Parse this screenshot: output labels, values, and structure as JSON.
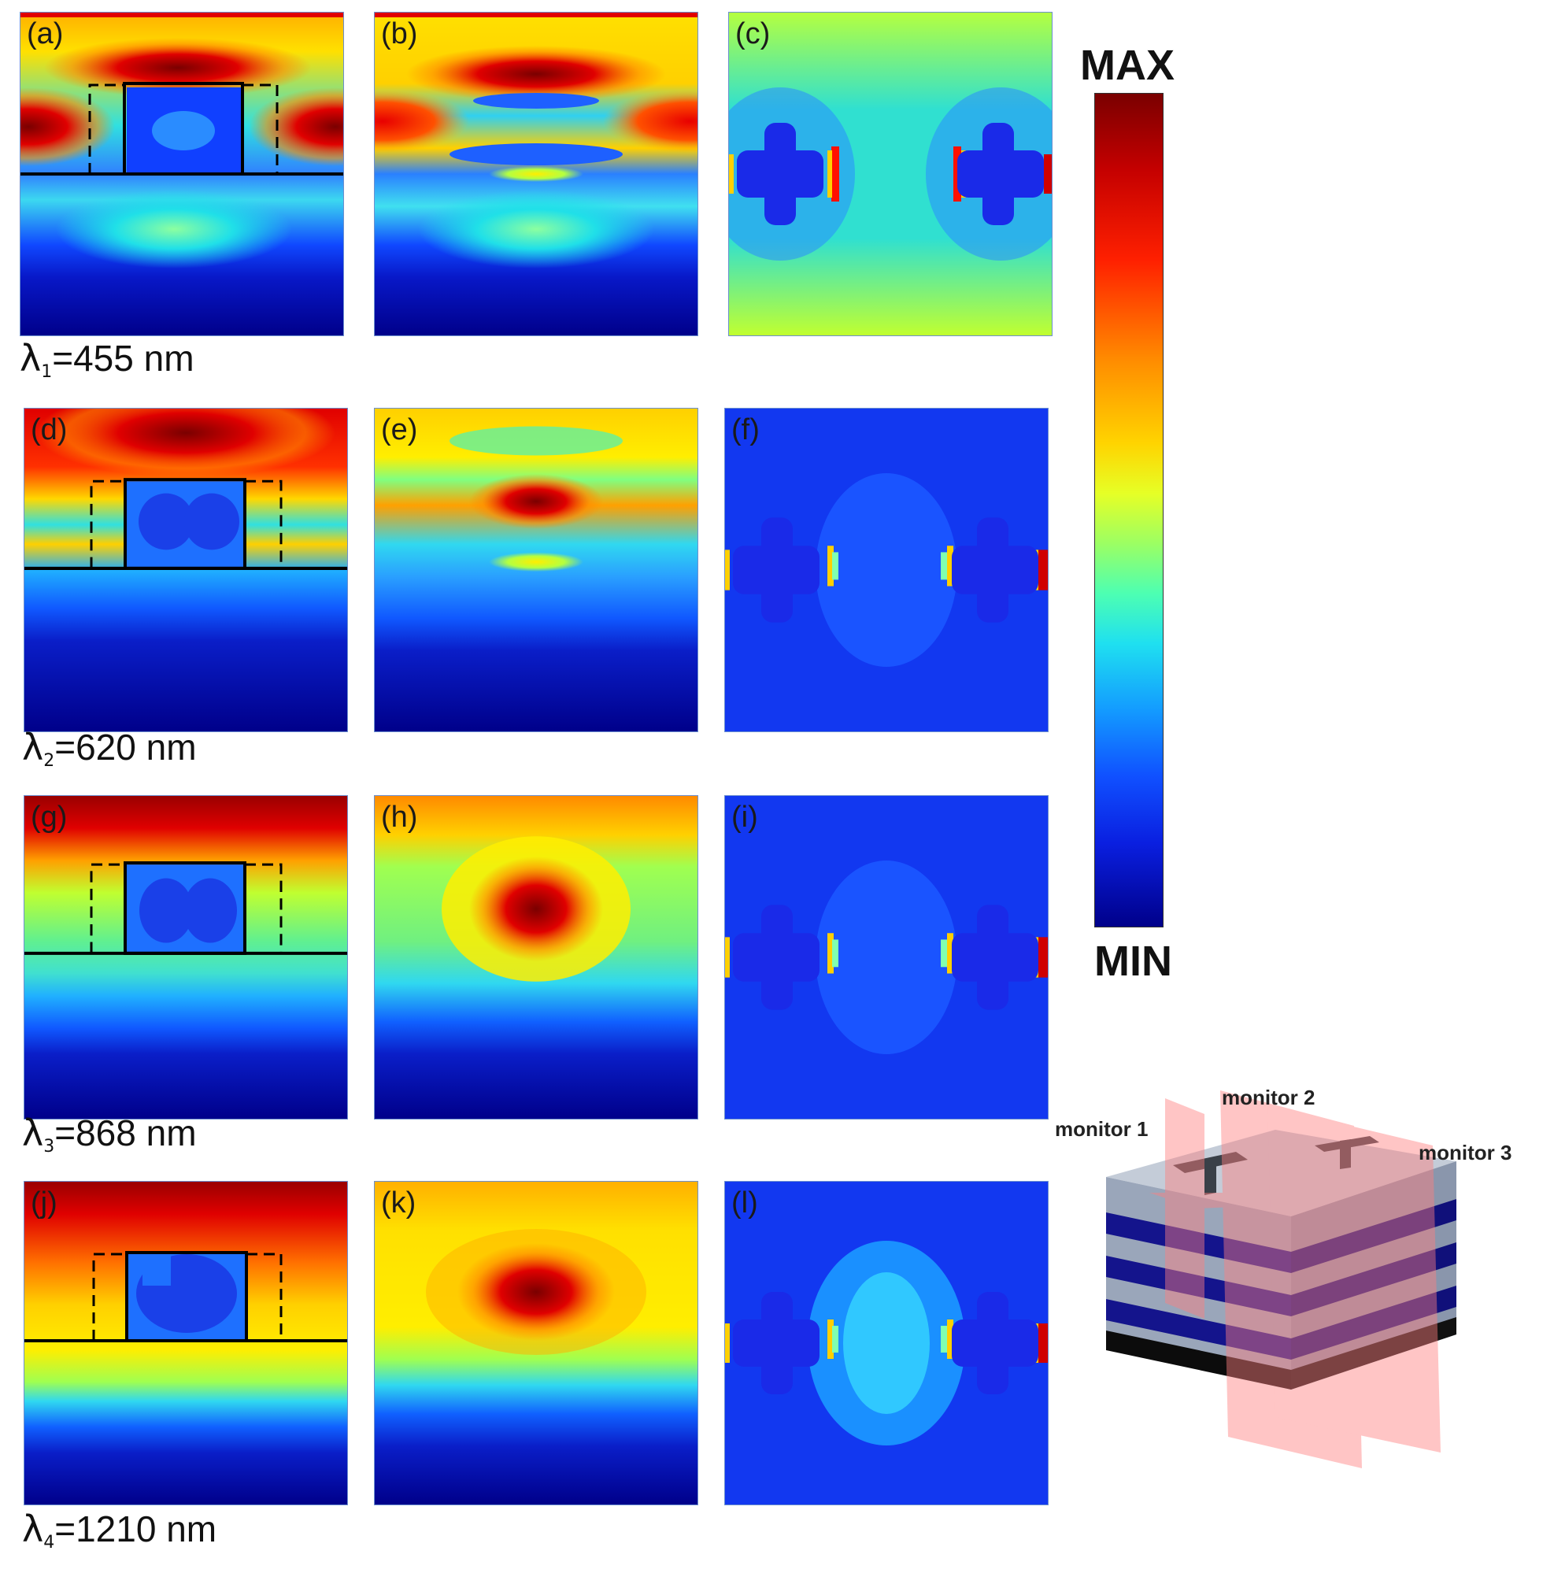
{
  "panels": [
    {
      "label": "(a)"
    },
    {
      "label": "(b)"
    },
    {
      "label": "(c)"
    },
    {
      "label": "(d)"
    },
    {
      "label": "(e)"
    },
    {
      "label": "(f)"
    },
    {
      "label": "(g)"
    },
    {
      "label": "(h)"
    },
    {
      "label": "(i)"
    },
    {
      "label": "(j)"
    },
    {
      "label": "(k)"
    },
    {
      "label": "(l)"
    }
  ],
  "wavelengths": [
    {
      "symbol": "λ",
      "sub": "1",
      "text": "=455 nm"
    },
    {
      "symbol": "λ",
      "sub": "2",
      "text": "=620 nm"
    },
    {
      "symbol": "λ",
      "sub": "3",
      "text": "=868 nm"
    },
    {
      "symbol": "λ",
      "sub": "4",
      "text": "=1210 nm"
    }
  ],
  "colorbar": {
    "max_label": "MAX",
    "min_label": "MIN"
  },
  "schematic": {
    "monitors": [
      "monitor 1",
      "monitor 2",
      "monitor 3"
    ]
  },
  "colors": {
    "dark_red": "#7a0000",
    "red": "#e00000",
    "yellow": "#ffe000",
    "cyan": "#20d8f0",
    "blue": "#1040ff",
    "navy": "#00008a",
    "layer_blue": "#14148c",
    "layer_gray": "#a9b4c6",
    "monitor_pink": "#ff8080"
  }
}
